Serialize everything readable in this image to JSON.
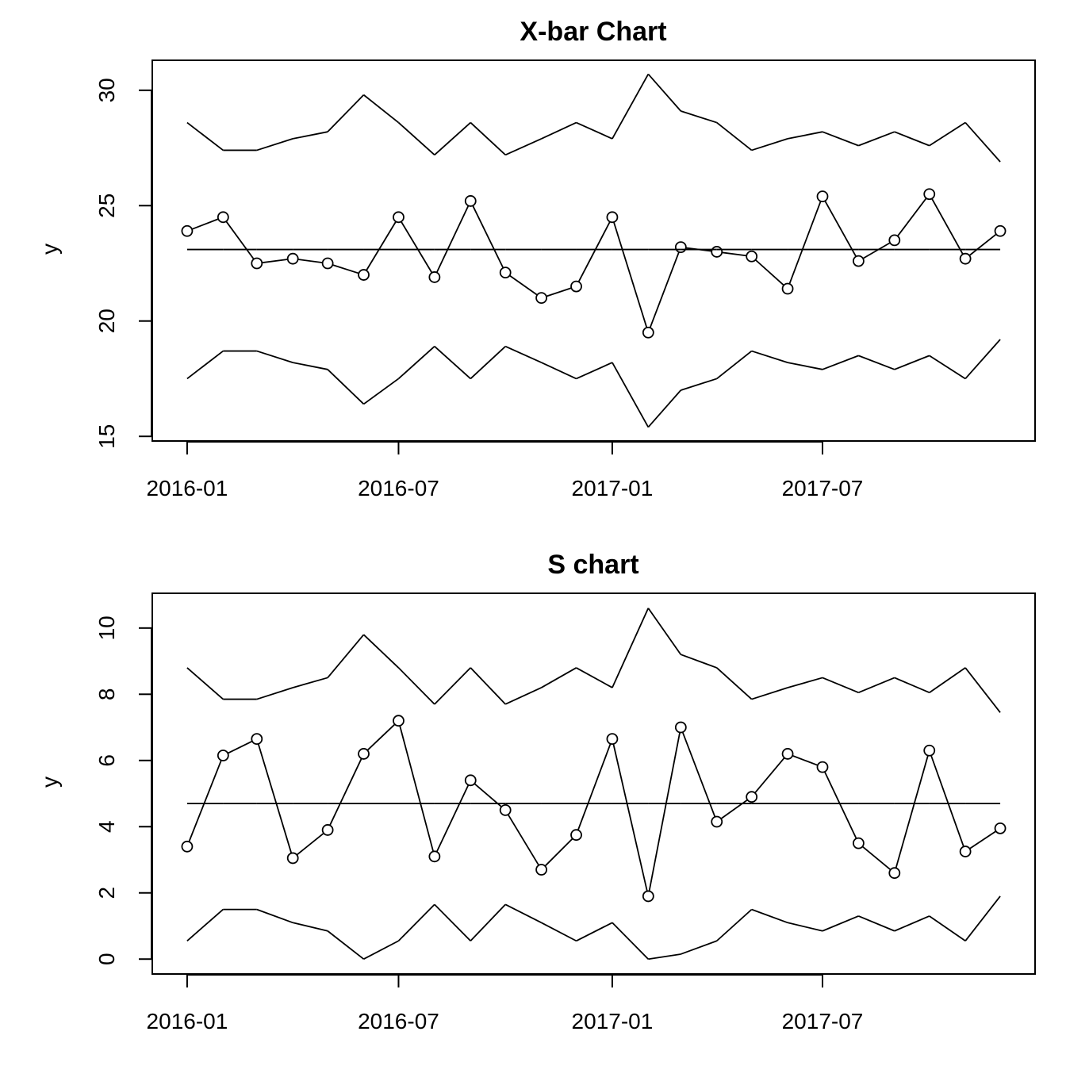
{
  "chart_data": [
    {
      "type": "line",
      "title": "X-bar Chart",
      "xlabel": "",
      "ylabel": "y",
      "x": [
        "2016-01-01",
        "2016-02-01",
        "2016-03-01",
        "2016-04-01",
        "2016-05-01",
        "2016-06-01",
        "2016-07-01",
        "2016-08-01",
        "2016-09-01",
        "2016-10-01",
        "2016-11-01",
        "2016-12-01",
        "2017-01-01",
        "2017-02-01",
        "2017-03-01",
        "2017-04-01",
        "2017-05-01",
        "2017-06-01",
        "2017-07-01",
        "2017-08-01",
        "2017-09-01",
        "2017-10-01",
        "2017-11-01",
        "2017-12-01"
      ],
      "xlim": [
        "2015-12-02",
        "2017-12-31"
      ],
      "x_ticks": [
        {
          "date": "2016-01-01",
          "label": "2016-01"
        },
        {
          "date": "2016-07-01",
          "label": "2016-07"
        },
        {
          "date": "2017-01-01",
          "label": "2017-01"
        },
        {
          "date": "2017-07-01",
          "label": "2017-07"
        }
      ],
      "ylim": [
        14.8,
        31.3
      ],
      "y_ticks": [
        15,
        20,
        25,
        30
      ],
      "grid": false,
      "series": [
        {
          "values": [
            17.5,
            18.7,
            18.7,
            18.2,
            17.9,
            16.4,
            17.5,
            18.9,
            17.5,
            18.9,
            18.2,
            17.5,
            18.2,
            15.4,
            17.0,
            17.5,
            18.7,
            18.2,
            17.9,
            18.5,
            17.9,
            18.5,
            17.5,
            19.2
          ],
          "markers": false
        },
        {
          "values": [
            23.9,
            24.5,
            22.5,
            22.7,
            22.5,
            22.0,
            24.5,
            21.9,
            25.2,
            22.1,
            21.0,
            21.5,
            24.5,
            19.5,
            23.2,
            23.0,
            22.8,
            21.4,
            25.4,
            22.6,
            23.5,
            25.5,
            22.7,
            23.9
          ],
          "markers": true
        },
        {
          "values": [
            23.1,
            23.1,
            23.1,
            23.1,
            23.1,
            23.1,
            23.1,
            23.1,
            23.1,
            23.1,
            23.1,
            23.1,
            23.1,
            23.1,
            23.1,
            23.1,
            23.1,
            23.1,
            23.1,
            23.1,
            23.1,
            23.1,
            23.1,
            23.1
          ],
          "markers": false
        },
        {
          "values": [
            28.6,
            27.4,
            27.4,
            27.9,
            28.2,
            29.8,
            28.6,
            27.2,
            28.6,
            27.2,
            27.9,
            28.6,
            27.9,
            30.7,
            29.1,
            28.6,
            27.4,
            27.9,
            28.2,
            27.6,
            28.2,
            27.6,
            28.6,
            26.9
          ],
          "markers": false
        }
      ]
    },
    {
      "type": "line",
      "title": "S chart",
      "xlabel": "",
      "ylabel": "y",
      "x": [
        "2016-01-01",
        "2016-02-01",
        "2016-03-01",
        "2016-04-01",
        "2016-05-01",
        "2016-06-01",
        "2016-07-01",
        "2016-08-01",
        "2016-09-01",
        "2016-10-01",
        "2016-11-01",
        "2016-12-01",
        "2017-01-01",
        "2017-02-01",
        "2017-03-01",
        "2017-04-01",
        "2017-05-01",
        "2017-06-01",
        "2017-07-01",
        "2017-08-01",
        "2017-09-01",
        "2017-10-01",
        "2017-11-01",
        "2017-12-01"
      ],
      "xlim": [
        "2015-12-02",
        "2017-12-31"
      ],
      "x_ticks": [
        {
          "date": "2016-01-01",
          "label": "2016-01"
        },
        {
          "date": "2016-07-01",
          "label": "2016-07"
        },
        {
          "date": "2017-01-01",
          "label": "2017-01"
        },
        {
          "date": "2017-07-01",
          "label": "2017-07"
        }
      ],
      "ylim": [
        -0.45,
        11.05
      ],
      "y_ticks": [
        0,
        2,
        4,
        6,
        8,
        10
      ],
      "grid": false,
      "series": [
        {
          "values": [
            0.55,
            1.5,
            1.5,
            1.1,
            0.85,
            0.0,
            0.55,
            1.65,
            0.55,
            1.65,
            1.1,
            0.55,
            1.1,
            0.0,
            0.15,
            0.55,
            1.5,
            1.1,
            0.85,
            1.3,
            0.85,
            1.3,
            0.55,
            1.9
          ],
          "markers": false
        },
        {
          "values": [
            3.4,
            6.15,
            6.65,
            3.05,
            3.9,
            6.2,
            7.2,
            3.1,
            5.4,
            4.5,
            2.7,
            3.75,
            6.65,
            1.9,
            7.0,
            4.15,
            4.9,
            6.2,
            5.8,
            3.5,
            2.6,
            6.3,
            3.25,
            3.95
          ],
          "markers": true
        },
        {
          "values": [
            4.7,
            4.7,
            4.7,
            4.7,
            4.7,
            4.7,
            4.7,
            4.7,
            4.7,
            4.7,
            4.7,
            4.7,
            4.7,
            4.7,
            4.7,
            4.7,
            4.7,
            4.7,
            4.7,
            4.7,
            4.7,
            4.7,
            4.7,
            4.7
          ],
          "markers": false
        },
        {
          "values": [
            8.8,
            7.85,
            7.85,
            8.2,
            8.5,
            9.8,
            8.8,
            7.7,
            8.8,
            7.7,
            8.2,
            8.8,
            8.2,
            10.6,
            9.2,
            8.8,
            7.85,
            8.2,
            8.5,
            8.05,
            8.5,
            8.05,
            8.8,
            7.45
          ],
          "markers": false
        }
      ]
    }
  ]
}
